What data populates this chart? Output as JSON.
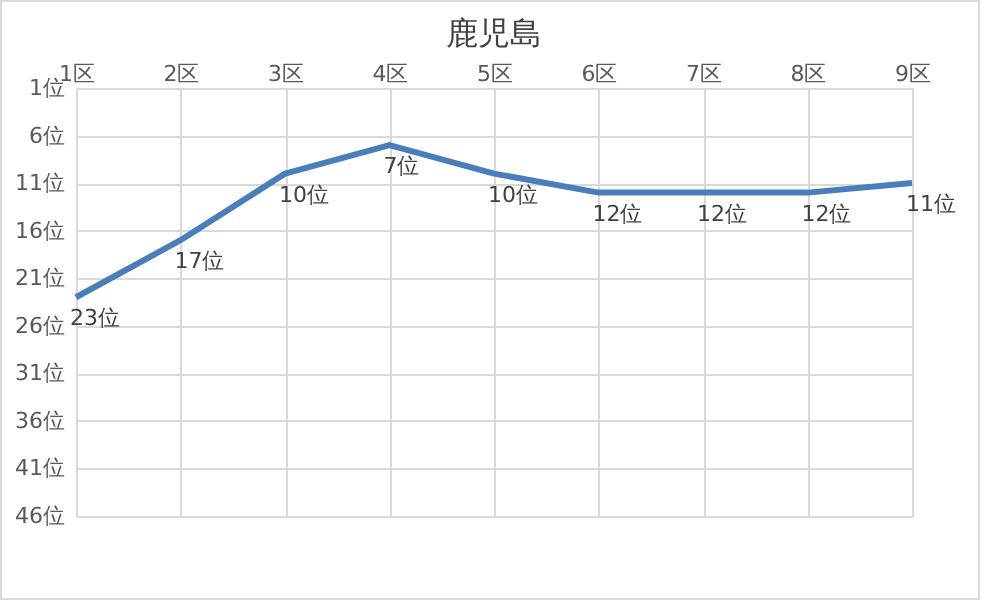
{
  "chart_data": {
    "type": "line",
    "title": "鹿児島",
    "categories": [
      "1区",
      "2区",
      "3区",
      "4区",
      "5区",
      "6区",
      "7区",
      "8区",
      "9区"
    ],
    "series": [
      {
        "color": "#4a7ebb",
        "values": [
          23,
          17,
          10,
          7,
          10,
          12,
          12,
          12,
          11
        ],
        "value_labels": [
          "23位",
          "17位",
          "10位",
          "7位",
          "10位",
          "12位",
          "12位",
          "12位",
          "11位"
        ]
      }
    ],
    "ylim": [
      46,
      1
    ],
    "yticks": [
      {
        "value": 1,
        "label": "1位"
      },
      {
        "value": 6,
        "label": "6位"
      },
      {
        "value": 11,
        "label": "11位"
      },
      {
        "value": 16,
        "label": "16位"
      },
      {
        "value": 21,
        "label": "21位"
      },
      {
        "value": 26,
        "label": "26位"
      },
      {
        "value": 31,
        "label": "31位"
      },
      {
        "value": 36,
        "label": "36位"
      },
      {
        "value": 41,
        "label": "41位"
      },
      {
        "value": 46,
        "label": "46位"
      }
    ],
    "grid": true,
    "marker": "none",
    "line_style": "solid"
  }
}
